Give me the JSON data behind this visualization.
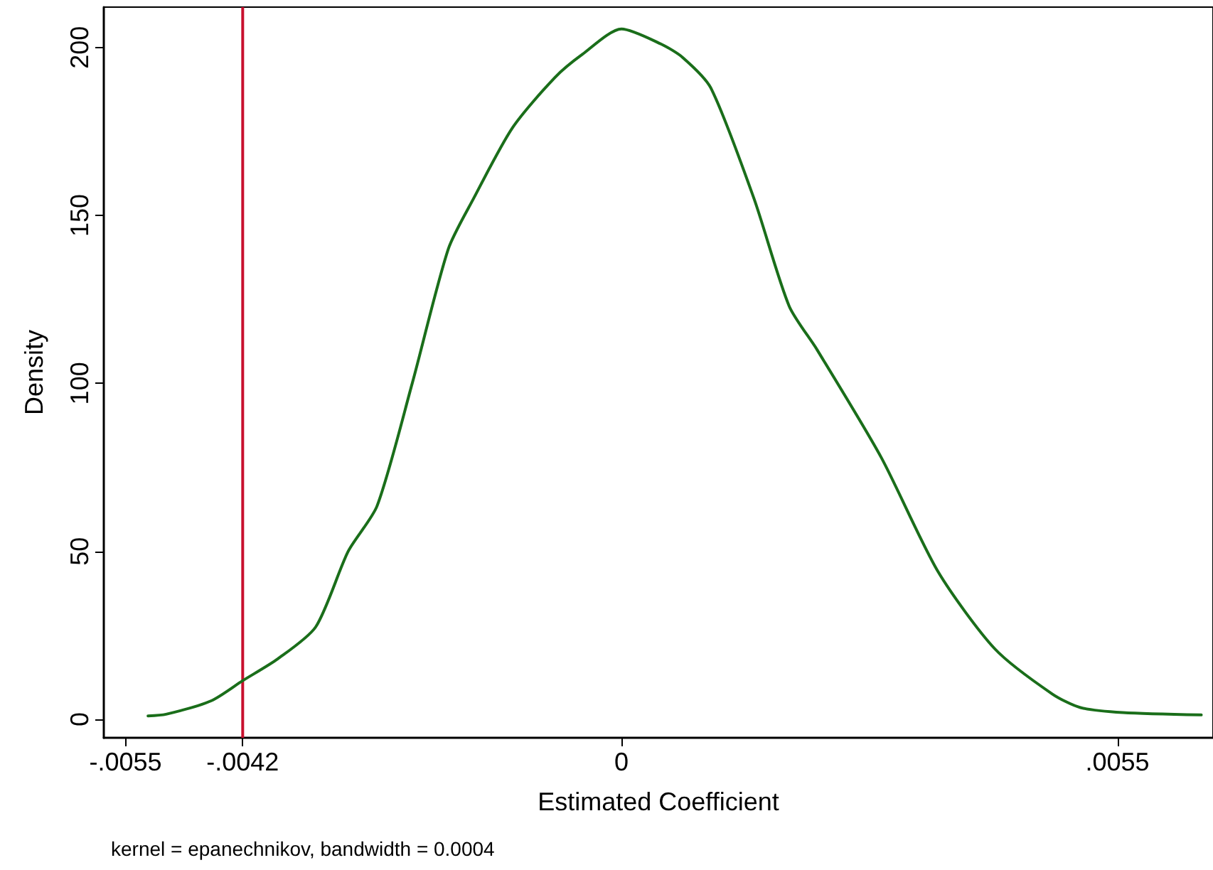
{
  "chart_data": {
    "type": "line",
    "xlabel": "Estimated Coefficient",
    "ylabel": "Density",
    "annotations": [
      "kernel = epanechnikov, bandwidth = 0.0004"
    ],
    "series": [
      {
        "color": "#1a6e1a",
        "x": [
          -0.00525,
          -0.00505,
          -0.00455,
          -0.0042,
          -0.00381,
          -0.00339,
          -0.00303,
          -0.00271,
          -0.00232,
          -0.00192,
          -0.00164,
          -0.00121,
          -0.00074,
          -0.00043,
          0,
          0.00044,
          0.00068,
          0.00099,
          0.00147,
          0.00186,
          0.00217,
          0.00288,
          0.00351,
          0.00414,
          0.00478,
          0.00509,
          0.00556,
          0.00643
        ],
        "values": [
          1,
          1.5,
          5.5,
          11.5,
          18,
          27.5,
          50,
          63.5,
          100,
          140,
          155,
          176,
          191,
          198,
          205.5,
          201,
          197,
          188,
          155,
          123,
          110,
          78,
          44,
          21,
          7.5,
          3.5,
          2,
          1.3
        ]
      }
    ],
    "ref_lines": [
      {
        "axis": "x",
        "value": -0.0042,
        "color": "#c8102e"
      }
    ],
    "xlim": [
      -0.00574,
      0.00656
    ],
    "xticks": [
      {
        "value": -0.0055,
        "label": "-.0055"
      },
      {
        "value": -0.0042,
        "label": "-.0042"
      },
      0,
      {
        "value": 0.0055,
        "label": ".0055"
      }
    ],
    "ylim": [
      -5.5,
      212
    ],
    "yticks": [
      0,
      50,
      100,
      150,
      200
    ],
    "grid": false,
    "marker": "none",
    "line_style": "solid"
  }
}
